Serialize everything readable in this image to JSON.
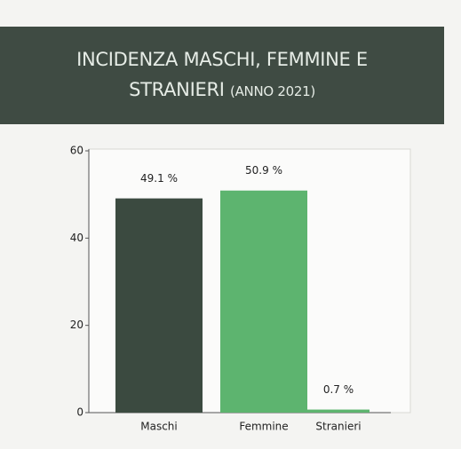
{
  "chart_data": {
    "type": "bar",
    "title": "INCIDENZA MASCHI, FEMMINE E STRANIERI",
    "subtitle": "(ANNO 2021)",
    "categories": [
      "Maschi",
      "Femmine",
      "Stranieri"
    ],
    "values": [
      49.1,
      50.9,
      0.7
    ],
    "value_labels": [
      "49.1 %",
      "50.9 %",
      "0.7 %"
    ],
    "colors": [
      "#3b4a40",
      "#5db46f",
      "#5db46f"
    ],
    "ylim": [
      0,
      60
    ],
    "yticks": [
      0,
      20,
      40,
      60
    ]
  }
}
